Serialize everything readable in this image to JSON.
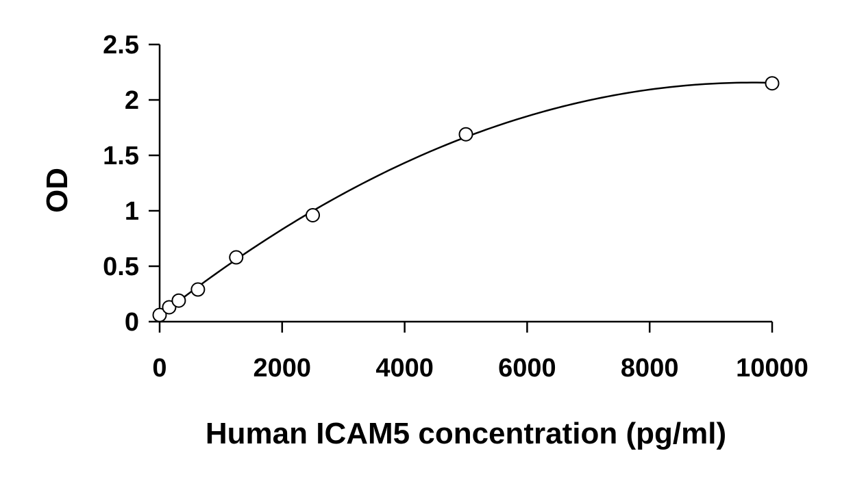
{
  "chart_data": {
    "type": "scatter",
    "title": "",
    "xlabel": "Human ICAM5 concentration (pg/ml)",
    "ylabel": "OD",
    "xlim": [
      0,
      10000
    ],
    "ylim": [
      0,
      2.5
    ],
    "x_ticks": [
      0,
      2000,
      4000,
      6000,
      8000,
      10000
    ],
    "x_tick_labels": [
      "0",
      "2000",
      "4000",
      "6000",
      "8000",
      "10000"
    ],
    "y_ticks": [
      0,
      0.5,
      1,
      1.5,
      2,
      2.5
    ],
    "y_tick_labels": [
      "0",
      "0.5",
      "1",
      "1.5",
      "2",
      "2.5"
    ],
    "grid": false,
    "legend": "none",
    "marker": "open-circle",
    "fit_line": "smooth-curve",
    "series": [
      {
        "x": [
          0,
          156,
          312,
          625,
          1250,
          2500,
          5000,
          10000
        ],
        "y": [
          0.06,
          0.13,
          0.19,
          0.29,
          0.58,
          0.96,
          1.69,
          2.15
        ]
      }
    ]
  }
}
